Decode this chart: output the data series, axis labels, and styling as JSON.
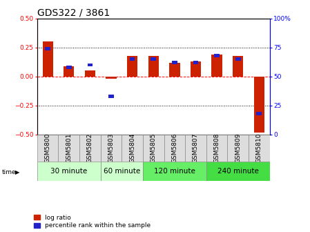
{
  "title": "GDS322 / 3861",
  "samples": [
    "GSM5800",
    "GSM5801",
    "GSM5802",
    "GSM5803",
    "GSM5804",
    "GSM5805",
    "GSM5806",
    "GSM5807",
    "GSM5808",
    "GSM5809",
    "GSM5810"
  ],
  "log_ratio": [
    0.3,
    0.09,
    0.055,
    -0.02,
    0.175,
    0.175,
    0.12,
    0.13,
    0.19,
    0.175,
    -0.48
  ],
  "percentile": [
    74,
    58,
    60,
    33,
    65,
    65,
    62,
    62,
    68,
    65,
    18
  ],
  "groups": [
    {
      "label": "30 minute",
      "start": 0,
      "end": 3,
      "color": "#ccffcc"
    },
    {
      "label": "60 minute",
      "start": 3,
      "end": 5,
      "color": "#ccffcc"
    },
    {
      "label": "120 minute",
      "start": 5,
      "end": 8,
      "color": "#66ee66"
    },
    {
      "label": "240 minute",
      "start": 8,
      "end": 11,
      "color": "#44dd44"
    }
  ],
  "bar_color_red": "#cc2200",
  "bar_color_blue": "#2222cc",
  "bar_width": 0.5,
  "ylim_left": [
    -0.5,
    0.5
  ],
  "ylim_right": [
    0,
    100
  ],
  "yticks_left": [
    -0.5,
    -0.25,
    0,
    0.25,
    0.5
  ],
  "yticks_right": [
    0,
    25,
    50,
    75,
    100
  ],
  "hlines_dotted": [
    0.25,
    -0.25
  ],
  "title_fontsize": 10,
  "tick_fontsize": 6.5,
  "group_fontsize": 7.5,
  "legend_fontsize": 6.5
}
